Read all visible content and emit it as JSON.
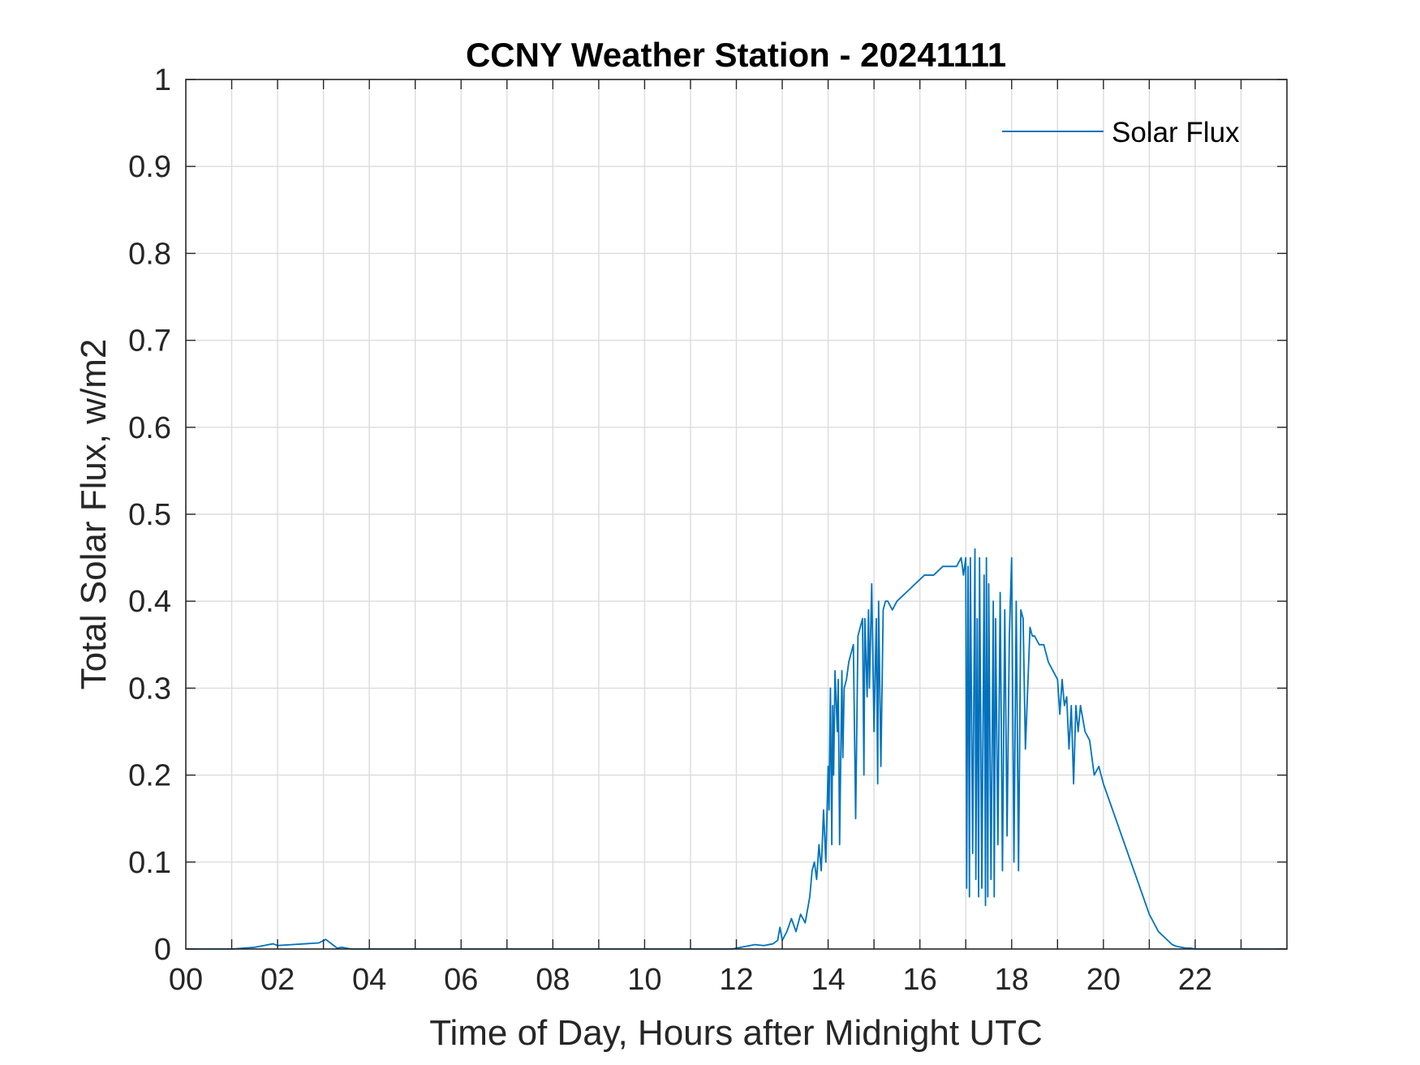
{
  "chart_data": {
    "type": "line",
    "title": "CCNY Weather Station - 20241111",
    "xlabel": "Time of Day, Hours after Midnight UTC",
    "ylabel": "Total Solar Flux, w/m2",
    "xlim": [
      0,
      24
    ],
    "ylim": [
      0,
      1
    ],
    "x_ticks": [
      0,
      2,
      4,
      6,
      8,
      10,
      12,
      14,
      16,
      18,
      20,
      22
    ],
    "x_tick_labels": [
      "00",
      "02",
      "04",
      "06",
      "08",
      "10",
      "12",
      "14",
      "16",
      "18",
      "20",
      "22"
    ],
    "y_ticks": [
      0,
      0.1,
      0.2,
      0.3,
      0.4,
      0.5,
      0.6,
      0.7,
      0.8,
      0.9,
      1
    ],
    "y_tick_labels": [
      "0",
      "0.1",
      "0.2",
      "0.3",
      "0.4",
      "0.5",
      "0.6",
      "0.7",
      "0.8",
      "0.9",
      "1"
    ],
    "grid": true,
    "legend": {
      "position": "top-right",
      "entries": [
        "Solar Flux"
      ]
    },
    "colors": {
      "series": "#0072BD",
      "grid": "#dcdcdc",
      "axes": "#262626"
    },
    "series": [
      {
        "name": "Solar Flux",
        "x": [
          0,
          1.0,
          1.5,
          1.7,
          1.9,
          2.0,
          2.3,
          2.6,
          2.9,
          3.05,
          3.2,
          3.3,
          3.4,
          3.6,
          4.0,
          11.5,
          11.9,
          12.1,
          12.4,
          12.6,
          12.8,
          12.9,
          12.95,
          13.0,
          13.1,
          13.2,
          13.3,
          13.4,
          13.5,
          13.6,
          13.65,
          13.7,
          13.75,
          13.8,
          13.85,
          13.9,
          13.95,
          14.0,
          14.02,
          14.05,
          14.08,
          14.1,
          14.12,
          14.15,
          14.2,
          14.22,
          14.25,
          14.3,
          14.32,
          14.35,
          14.4,
          14.45,
          14.5,
          14.55,
          14.6,
          14.65,
          14.7,
          14.75,
          14.78,
          14.8,
          14.85,
          14.88,
          14.9,
          14.95,
          15.0,
          15.05,
          15.08,
          15.1,
          15.15,
          15.2,
          15.25,
          15.3,
          15.4,
          15.5,
          15.7,
          15.9,
          16.1,
          16.3,
          16.5,
          16.7,
          16.8,
          16.9,
          16.95,
          17.0,
          17.02,
          17.05,
          17.08,
          17.1,
          17.15,
          17.2,
          17.22,
          17.25,
          17.28,
          17.3,
          17.35,
          17.4,
          17.43,
          17.45,
          17.48,
          17.5,
          17.55,
          17.6,
          17.62,
          17.65,
          17.7,
          17.75,
          17.8,
          17.85,
          17.9,
          17.95,
          18.0,
          18.05,
          18.1,
          18.15,
          18.2,
          18.25,
          18.3,
          18.4,
          18.45,
          18.5,
          18.6,
          18.7,
          18.8,
          18.9,
          19.0,
          19.05,
          19.1,
          19.15,
          19.2,
          19.25,
          19.3,
          19.35,
          19.4,
          19.45,
          19.5,
          19.6,
          19.7,
          19.75,
          19.8,
          19.9,
          20.0,
          20.2,
          20.4,
          20.6,
          20.8,
          21.0,
          21.2,
          21.4,
          21.5,
          21.6,
          21.7,
          21.8,
          21.9,
          22.0,
          22.2,
          22.5,
          23.0,
          24.0
        ],
        "y": [
          0,
          0,
          0.002,
          0.004,
          0.006,
          0.004,
          0.005,
          0.006,
          0.007,
          0.011,
          0.005,
          0.001,
          0.002,
          0,
          0,
          0,
          0,
          0.002,
          0.005,
          0.004,
          0.006,
          0.01,
          0.025,
          0.01,
          0.02,
          0.035,
          0.02,
          0.04,
          0.03,
          0.06,
          0.09,
          0.1,
          0.08,
          0.12,
          0.09,
          0.16,
          0.1,
          0.21,
          0.16,
          0.3,
          0.12,
          0.28,
          0.2,
          0.32,
          0.25,
          0.31,
          0.12,
          0.32,
          0.22,
          0.3,
          0.31,
          0.33,
          0.34,
          0.35,
          0.15,
          0.36,
          0.37,
          0.38,
          0.2,
          0.38,
          0.29,
          0.39,
          0.3,
          0.42,
          0.25,
          0.38,
          0.19,
          0.4,
          0.21,
          0.39,
          0.4,
          0.4,
          0.39,
          0.4,
          0.41,
          0.42,
          0.43,
          0.43,
          0.44,
          0.44,
          0.44,
          0.45,
          0.43,
          0.45,
          0.07,
          0.44,
          0.06,
          0.45,
          0.11,
          0.46,
          0.08,
          0.38,
          0.06,
          0.45,
          0.07,
          0.43,
          0.05,
          0.45,
          0.06,
          0.42,
          0.08,
          0.4,
          0.06,
          0.38,
          0.12,
          0.41,
          0.09,
          0.39,
          0.13,
          0.36,
          0.45,
          0.1,
          0.4,
          0.09,
          0.39,
          0.38,
          0.23,
          0.37,
          0.36,
          0.36,
          0.35,
          0.35,
          0.33,
          0.32,
          0.31,
          0.27,
          0.31,
          0.28,
          0.29,
          0.23,
          0.28,
          0.19,
          0.28,
          0.25,
          0.28,
          0.25,
          0.24,
          0.22,
          0.2,
          0.21,
          0.19,
          0.16,
          0.13,
          0.1,
          0.07,
          0.04,
          0.02,
          0.01,
          0.005,
          0.003,
          0.002,
          0.001,
          0.001,
          0,
          0,
          0,
          0,
          0
        ]
      }
    ]
  }
}
